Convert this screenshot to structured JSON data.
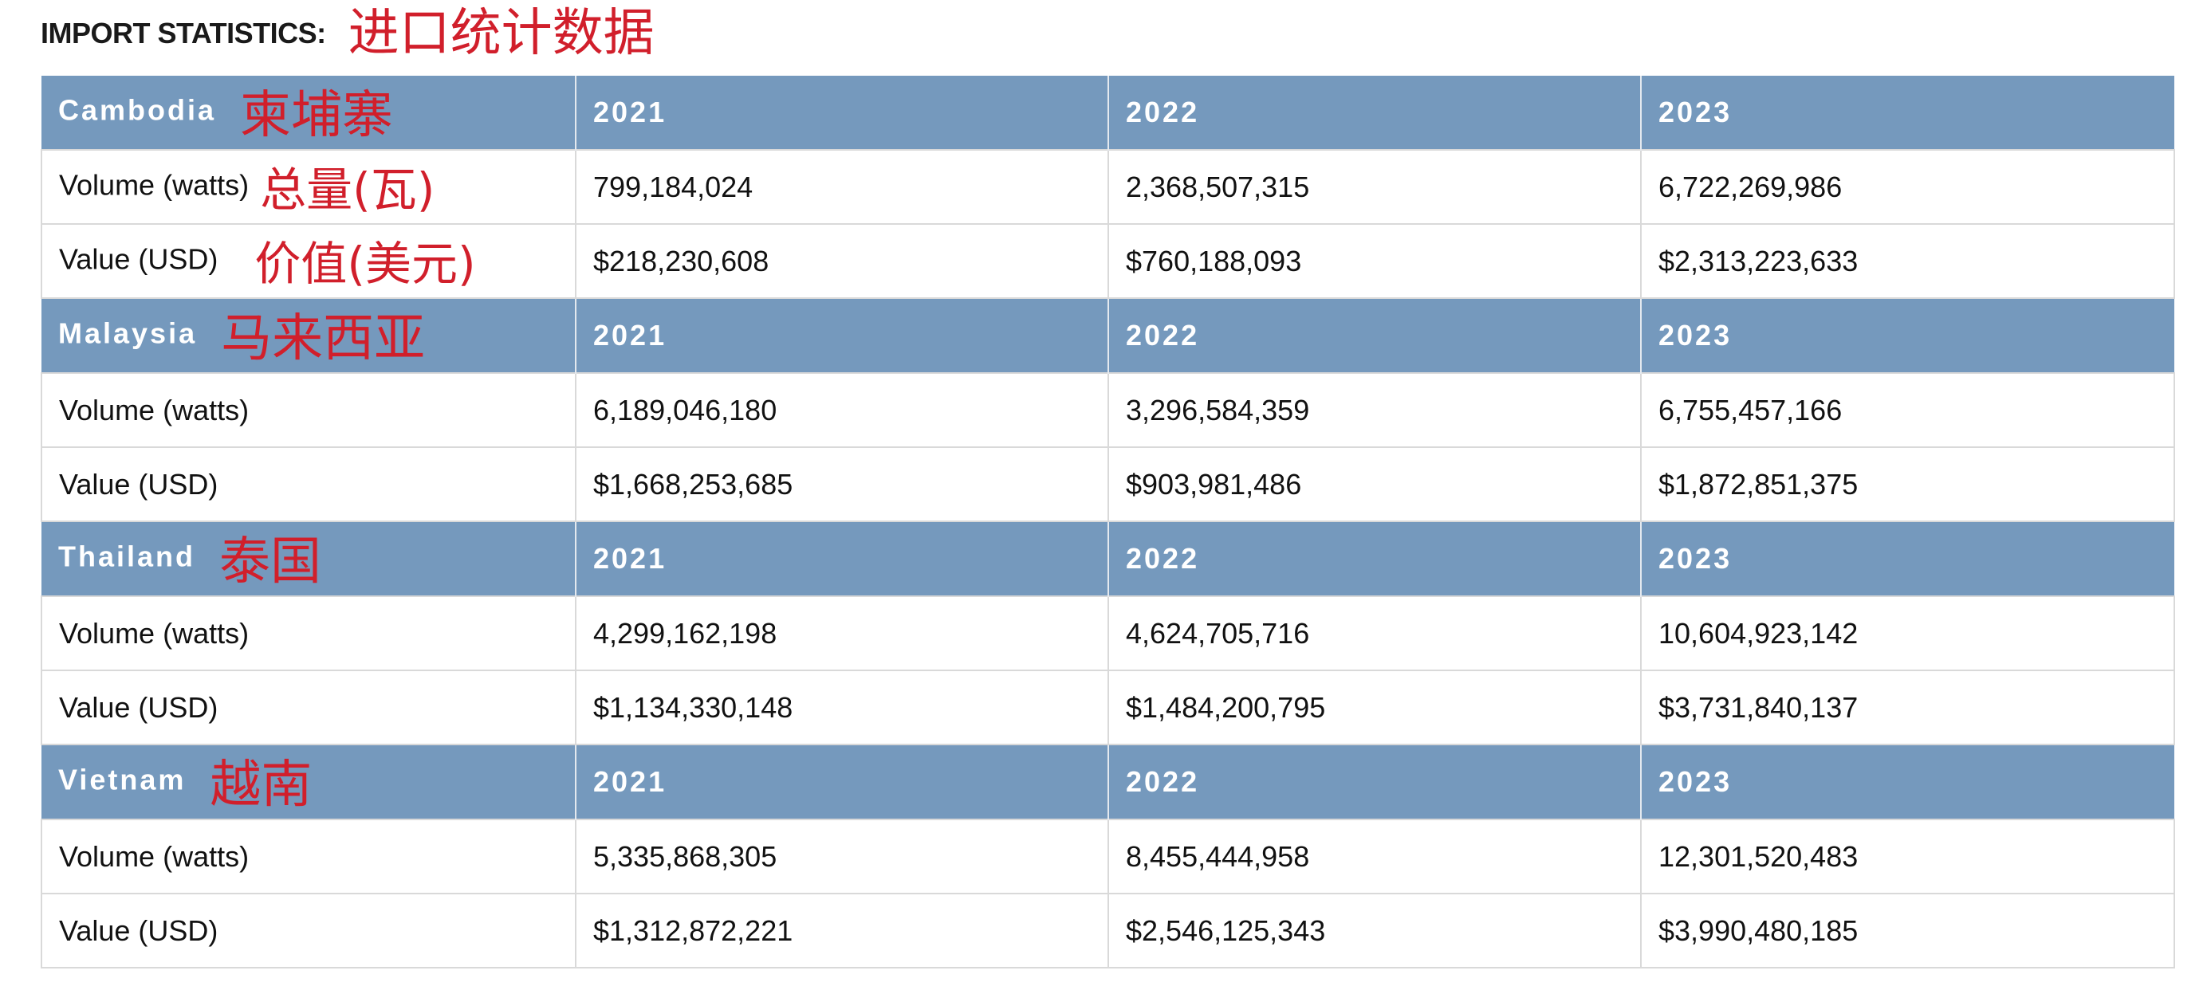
{
  "document": {
    "title": "IMPORT STATISTICS:",
    "title_annotation": "进口统计数据"
  },
  "sections": [
    {
      "country": "Cambodia",
      "country_annotation": "柬埔寨",
      "years": [
        "2021",
        "2022",
        "2023"
      ],
      "rows": [
        {
          "label": "Volume (watts)",
          "annotation": "总量(瓦)",
          "values": [
            "799,184,024",
            "2,368,507,315",
            "6,722,269,986"
          ]
        },
        {
          "label": "Value (USD)",
          "annotation": "价值(美元)",
          "values": [
            "$218,230,608",
            "$760,188,093",
            "$2,313,223,633"
          ]
        }
      ]
    },
    {
      "country": "Malaysia",
      "country_annotation": "马来西亚",
      "years": [
        "2021",
        "2022",
        "2023"
      ],
      "rows": [
        {
          "label": "Volume (watts)",
          "values": [
            "6,189,046,180",
            "3,296,584,359",
            "6,755,457,166"
          ]
        },
        {
          "label": "Value (USD)",
          "values": [
            "$1,668,253,685",
            "$903,981,486",
            "$1,872,851,375"
          ]
        }
      ]
    },
    {
      "country": "Thailand",
      "country_annotation": "泰国",
      "years": [
        "2021",
        "2022",
        "2023"
      ],
      "rows": [
        {
          "label": "Volume (watts)",
          "values": [
            "4,299,162,198",
            "4,624,705,716",
            "10,604,923,142"
          ]
        },
        {
          "label": "Value (USD)",
          "values": [
            "$1,134,330,148",
            "$1,484,200,795",
            "$3,731,840,137"
          ]
        }
      ]
    },
    {
      "country": "Vietnam",
      "country_annotation": "越南",
      "years": [
        "2021",
        "2022",
        "2023"
      ],
      "rows": [
        {
          "label": "Volume (watts)",
          "values": [
            "5,335,868,305",
            "8,455,444,958",
            "12,301,520,483"
          ]
        },
        {
          "label": "Value (USD)",
          "values": [
            "$1,312,872,221",
            "$2,546,125,343",
            "$3,990,480,185"
          ]
        }
      ]
    }
  ],
  "colors": {
    "header_background": "#7599bd",
    "header_text": "#ffffff",
    "annotation_text": "#d11f2b",
    "grid_border": "#d9d9d9"
  }
}
